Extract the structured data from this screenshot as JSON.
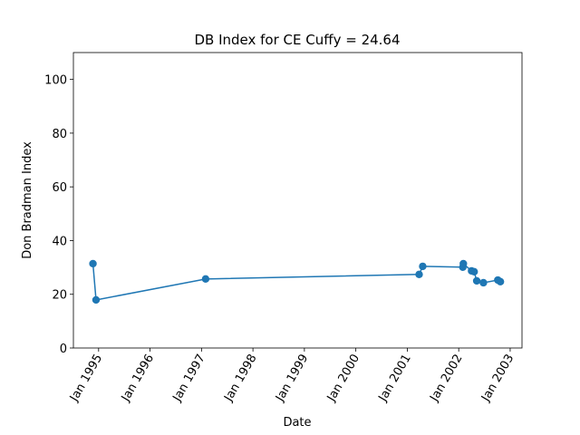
{
  "chart_data": {
    "type": "line",
    "title": "DB Index for CE Cuffy = 24.64",
    "xlabel": "Date",
    "ylabel": "Don Bradman Index",
    "x": [
      1994.89,
      1994.95,
      1997.08,
      2001.23,
      2001.3,
      2002.08,
      2002.09,
      2002.25,
      2002.3,
      2002.35,
      2002.48,
      2002.76,
      2002.81
    ],
    "series": [
      {
        "name": "DB Index",
        "color": "#1f77b4",
        "values": [
          31.4,
          17.9,
          25.7,
          27.4,
          30.4,
          30.1,
          31.4,
          28.7,
          28.4,
          25.0,
          24.3,
          25.3,
          24.7
        ]
      }
    ],
    "xlim": [
      1994.51,
      2003.23
    ],
    "xticks": [
      {
        "value": 1995,
        "label": "Jan 1995"
      },
      {
        "value": 1996,
        "label": "Jan 1996"
      },
      {
        "value": 1997,
        "label": "Jan 1997"
      },
      {
        "value": 1998,
        "label": "Jan 1998"
      },
      {
        "value": 1999,
        "label": "Jan 1999"
      },
      {
        "value": 2000,
        "label": "Jan 2000"
      },
      {
        "value": 2001,
        "label": "Jan 2001"
      },
      {
        "value": 2002,
        "label": "Jan 2002"
      },
      {
        "value": 2003,
        "label": "Jan 2003"
      }
    ],
    "ylim": [
      0,
      110
    ],
    "yticks": [
      0,
      20,
      40,
      60,
      80,
      100
    ],
    "grid": false
  }
}
